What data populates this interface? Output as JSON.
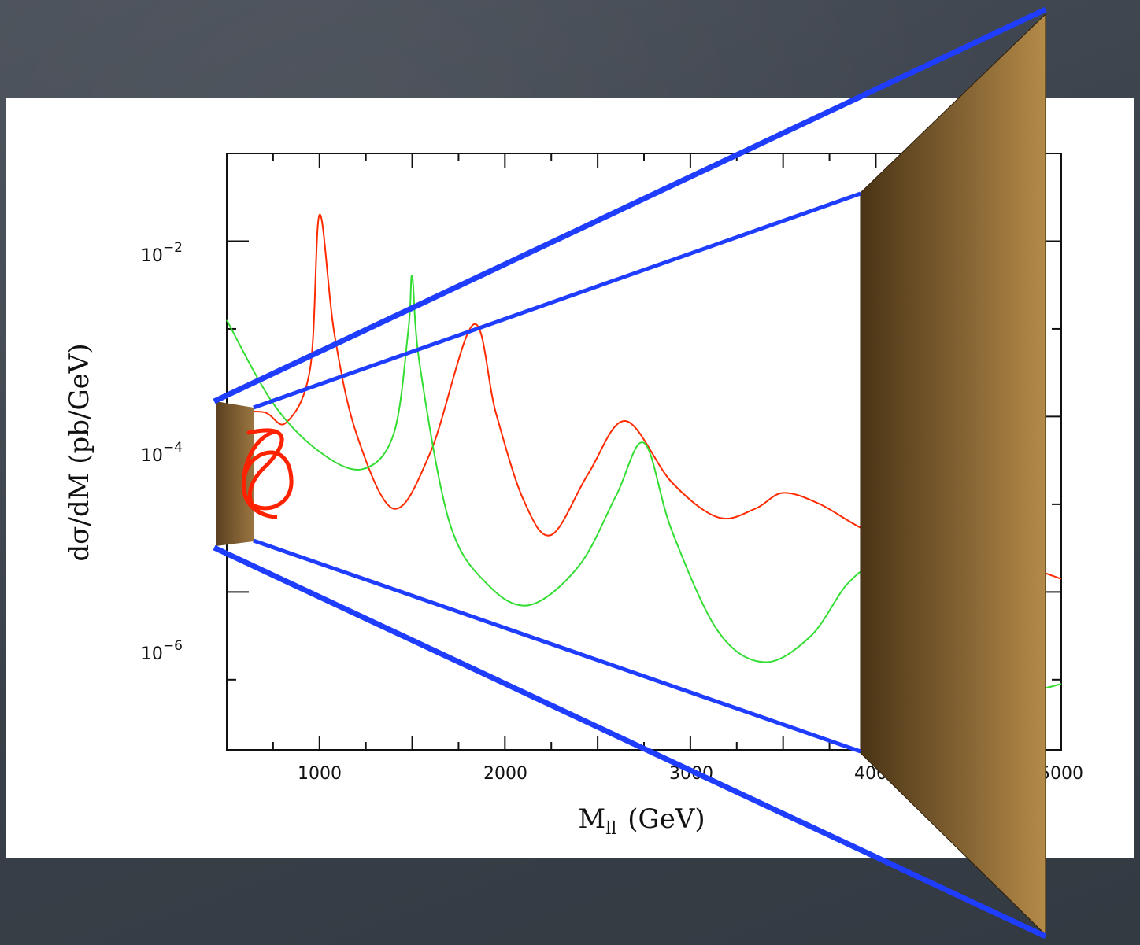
{
  "chart_data": {
    "type": "line",
    "title": "",
    "xlabel": "M",
    "xlabel_sub": "ll",
    "xlabel_unit": "(GeV)",
    "ylabel": "dσ/dM (pb/GeV)",
    "xlim": [
      500,
      5000
    ],
    "ylim_log10": [
      -7.8,
      -1.0
    ],
    "yscale": "log",
    "grid": false,
    "x_ticks": [
      1000,
      2000,
      3000,
      4000,
      5000
    ],
    "x_tick_labels": [
      "1000",
      "2000",
      "3000",
      "4000",
      "5000"
    ],
    "y_ticks_log10": [
      -2,
      -4,
      -6
    ],
    "y_tick_labels": [
      {
        "base": "10",
        "exp": "−2"
      },
      {
        "base": "10",
        "exp": "−4"
      },
      {
        "base": "10",
        "exp": "−6"
      }
    ],
    "series": [
      {
        "color": "#ff2a00",
        "x": [
          500,
          700,
          820,
          950,
          1000,
          1080,
          1200,
          1400,
          1600,
          1830,
          1950,
          2100,
          2250,
          2450,
          2650,
          2900,
          3150,
          3350,
          3500,
          3700,
          3950,
          4200,
          4600,
          5000
        ],
        "log10y": [
          -3.95,
          -3.95,
          -4.07,
          -3.45,
          -1.7,
          -3.05,
          -4.2,
          -5.05,
          -4.4,
          -2.95,
          -3.95,
          -4.95,
          -5.35,
          -4.65,
          -4.05,
          -4.75,
          -5.15,
          -5.05,
          -4.87,
          -5.0,
          -5.3,
          -5.45,
          -5.57,
          -5.85
        ]
      },
      {
        "color": "#33dd33",
        "x": [
          500,
          750,
          1000,
          1230,
          1400,
          1480,
          1500,
          1540,
          1700,
          1900,
          2130,
          2400,
          2600,
          2750,
          2900,
          3150,
          3400,
          3650,
          3850,
          4000,
          4200,
          4500,
          4800,
          5000
        ],
        "log10y": [
          -2.9,
          -3.85,
          -4.4,
          -4.6,
          -4.2,
          -3.0,
          -2.4,
          -3.4,
          -5.2,
          -5.9,
          -6.15,
          -5.7,
          -4.9,
          -4.3,
          -5.3,
          -6.45,
          -6.8,
          -6.5,
          -5.9,
          -5.75,
          -6.2,
          -6.8,
          -7.1,
          -7.05
        ]
      }
    ]
  },
  "decorations": {
    "line_color": "#1f3dff",
    "slab_color_dark": "#4a3415",
    "slab_color_light": "#b48a48",
    "knot_color": "#ff2200"
  }
}
